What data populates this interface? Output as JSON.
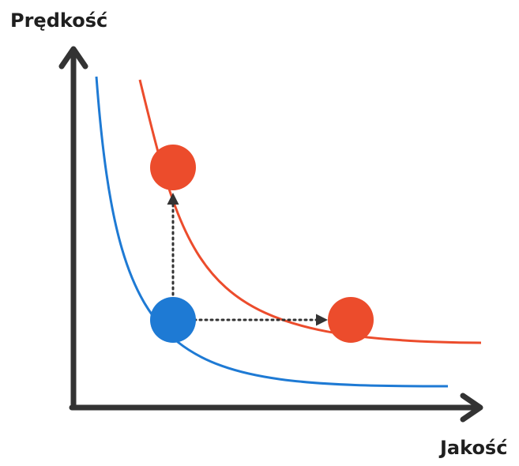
{
  "axes": {
    "y_label": "Prędkość",
    "x_label": "Jakość"
  },
  "colors": {
    "axis": "#333333",
    "baseline_curve": "#1e7ad4",
    "improved_curve": "#ec4c2c",
    "arrow": "#333333"
  }
}
